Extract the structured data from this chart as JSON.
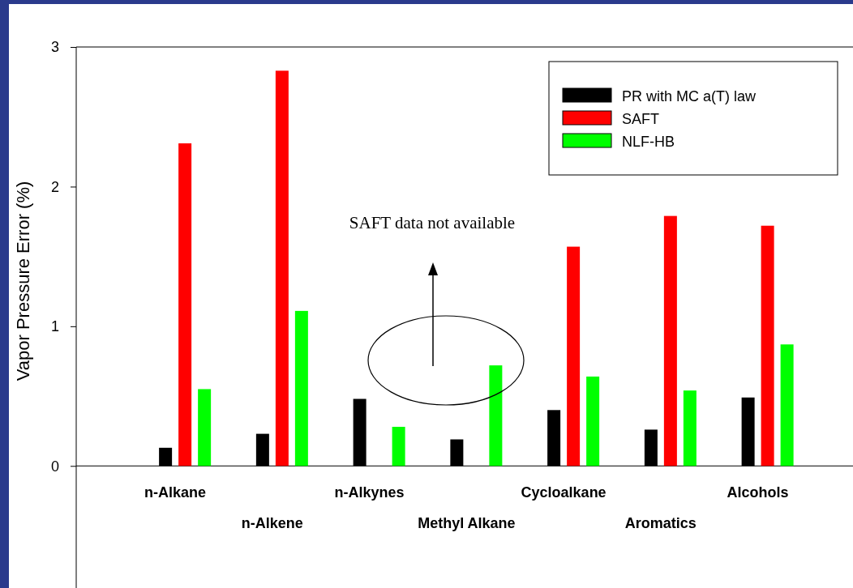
{
  "chart_data": {
    "type": "bar",
    "ylabel": "Vapor Pressure Error (%)",
    "categories": [
      "n-Alkane",
      "n-Alkene",
      "n-Alkynes",
      "Methyl Alkane",
      "Cycloalkane",
      "Aromatics",
      "Alcohols"
    ],
    "series": [
      {
        "name": "PR with MC a(T) law",
        "color": "#000000",
        "values": [
          0.13,
          0.23,
          0.48,
          0.19,
          0.4,
          0.26,
          0.49
        ]
      },
      {
        "name": "SAFT",
        "color": "#ff0000",
        "values": [
          2.31,
          2.83,
          null,
          null,
          1.57,
          1.79,
          1.72
        ]
      },
      {
        "name": "NLF-HB",
        "color": "#00ff00",
        "values": [
          0.55,
          1.11,
          0.28,
          0.72,
          0.64,
          0.54,
          0.87
        ]
      }
    ],
    "ylim": [
      -0.88,
      3
    ],
    "yticks": [
      0,
      1,
      2,
      3
    ],
    "grid": false,
    "legend": "top right",
    "annotations": [
      "SAFT data not available"
    ]
  }
}
